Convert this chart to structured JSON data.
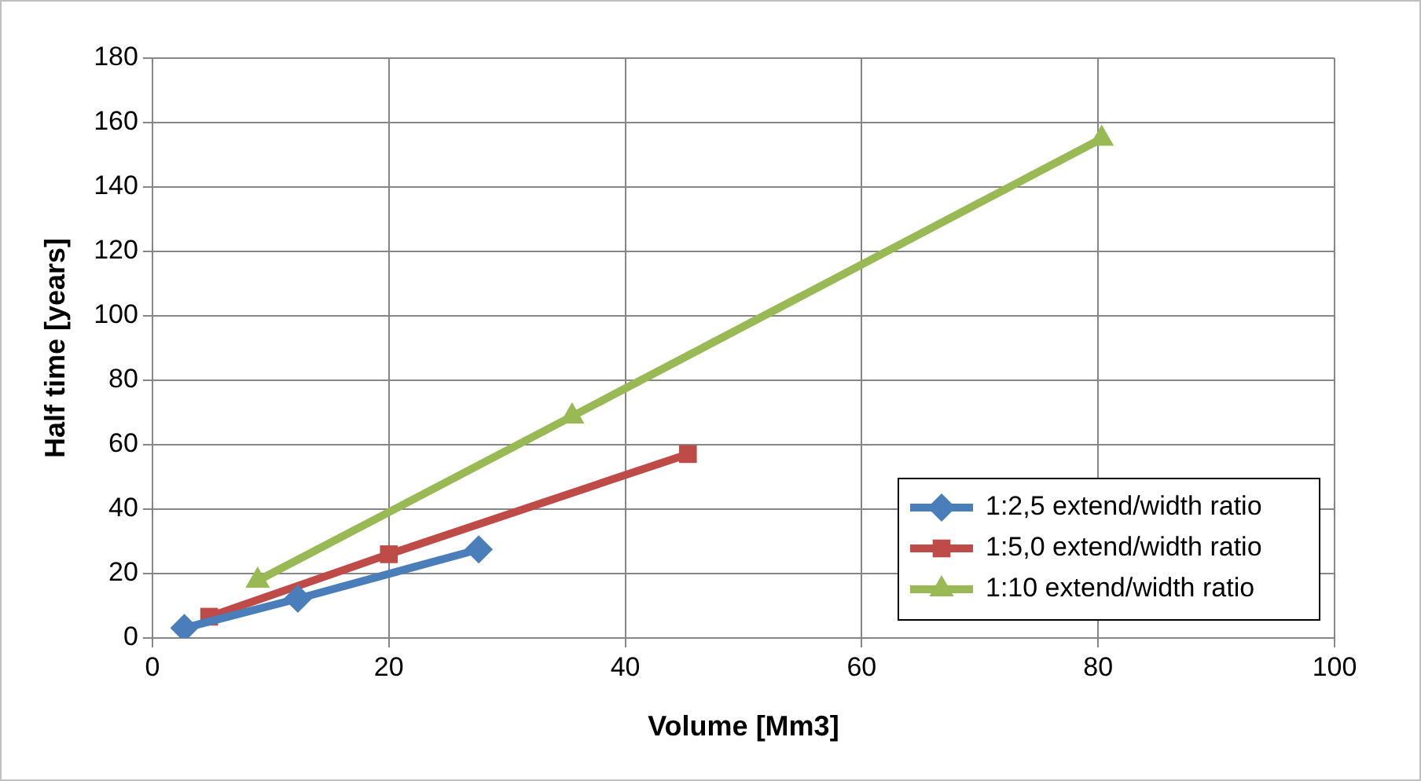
{
  "chart_data": {
    "type": "line",
    "xlabel": "Volume [Mm3]",
    "ylabel": "Half time [years]",
    "xlim": [
      0,
      100
    ],
    "xticks": [
      0,
      20,
      40,
      60,
      80,
      100
    ],
    "ylim": [
      0,
      180
    ],
    "yticks": [
      0,
      20,
      40,
      60,
      80,
      100,
      120,
      140,
      160,
      180
    ],
    "grid": true,
    "legend": "bottom right",
    "line_style": "solid",
    "series": [
      {
        "name": "1:2,5 extend/width ratio",
        "color": "#4a7ebb",
        "marker": "diamond",
        "x": [
          2.7,
          12.3,
          27.6
        ],
        "values": [
          3.1,
          12.2,
          27.5
        ]
      },
      {
        "name": "1:5,0 extend/width ratio",
        "color": "#be4b48",
        "marker": "square",
        "x": [
          4.8,
          20.0,
          45.3
        ],
        "values": [
          6.6,
          26.0,
          57.1
        ]
      },
      {
        "name": "1:10 extend/width ratio",
        "color": "#98b954",
        "marker": "triangle",
        "x": [
          8.9,
          35.5,
          80.3
        ],
        "values": [
          17.8,
          68.8,
          155.0
        ]
      }
    ]
  }
}
